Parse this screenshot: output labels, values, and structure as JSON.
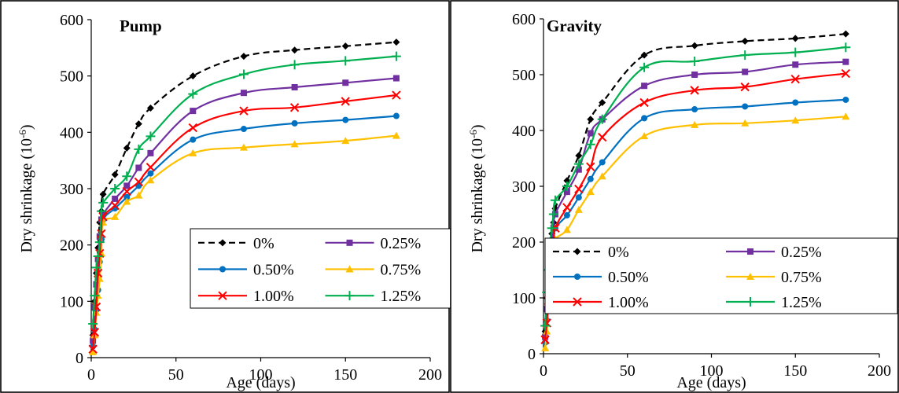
{
  "chart_data": [
    {
      "type": "line",
      "title": "Pump",
      "xlabel": "Age (days)",
      "ylabel": "Dry shrinkage (10",
      "ylabel_sup": "-6",
      "ylabel_close": ")",
      "xlim": [
        0,
        200
      ],
      "ylim": [
        0,
        600
      ],
      "xticks": [
        0,
        50,
        100,
        150,
        200
      ],
      "yticks": [
        0,
        100,
        200,
        300,
        400,
        500,
        600
      ],
      "grid": false,
      "legend_position": "bottom-right",
      "x": [
        1,
        2,
        3,
        4,
        5,
        6,
        7,
        14,
        21,
        28,
        35,
        60,
        90,
        120,
        150,
        180
      ],
      "series": [
        {
          "name": "0%",
          "color": "#000000",
          "dash": "8,5",
          "marker": "diamond",
          "values": [
            40,
            100,
            150,
            195,
            240,
            260,
            290,
            325,
            372,
            415,
            443,
            500,
            535,
            546,
            553,
            560
          ]
        },
        {
          "name": "0.25%",
          "color": "#7030A0",
          "dash": "",
          "marker": "square",
          "values": [
            30,
            90,
            130,
            175,
            215,
            245,
            255,
            282,
            305,
            337,
            363,
            438,
            470,
            480,
            488,
            496
          ]
        },
        {
          "name": "0.50%",
          "color": "#0070C0",
          "dash": "",
          "marker": "circle",
          "values": [
            20,
            50,
            85,
            120,
            170,
            210,
            245,
            265,
            285,
            305,
            327,
            387,
            406,
            416,
            422,
            429
          ]
        },
        {
          "name": "0.75%",
          "color": "#FFC000",
          "dash": "",
          "marker": "triangle",
          "values": [
            10,
            40,
            80,
            110,
            140,
            185,
            240,
            250,
            277,
            288,
            315,
            363,
            373,
            379,
            385,
            394
          ]
        },
        {
          "name": "1.00%",
          "color": "#FF0000",
          "dash": "",
          "marker": "x",
          "values": [
            15,
            45,
            90,
            150,
            185,
            220,
            250,
            270,
            295,
            312,
            338,
            408,
            438,
            444,
            455,
            466
          ]
        },
        {
          "name": "1.25%",
          "color": "#00B050",
          "dash": "",
          "marker": "plus",
          "values": [
            60,
            110,
            160,
            180,
            205,
            260,
            275,
            300,
            322,
            370,
            393,
            468,
            503,
            520,
            527,
            535
          ]
        }
      ]
    },
    {
      "type": "line",
      "title": "Gravity",
      "xlabel": "Age (days)",
      "ylabel": "Dry shrinkage (10",
      "ylabel_sup": "-6",
      "ylabel_close": ")",
      "xlim": [
        0,
        200
      ],
      "ylim": [
        0,
        600
      ],
      "xticks": [
        0,
        50,
        100,
        150,
        200
      ],
      "yticks": [
        0,
        100,
        200,
        300,
        400,
        500,
        600
      ],
      "grid": false,
      "legend_position": "bottom-right",
      "x": [
        1,
        2,
        3,
        4,
        5,
        6,
        7,
        14,
        21,
        28,
        35,
        60,
        90,
        120,
        150,
        180
      ],
      "series": [
        {
          "name": "0%",
          "color": "#000000",
          "dash": "8,5",
          "marker": "diamond",
          "values": [
            40,
            100,
            150,
            190,
            215,
            235,
            260,
            310,
            355,
            420,
            450,
            535,
            552,
            560,
            565,
            573
          ]
        },
        {
          "name": "0.25%",
          "color": "#7030A0",
          "dash": "",
          "marker": "square",
          "values": [
            30,
            80,
            120,
            160,
            200,
            225,
            250,
            290,
            330,
            395,
            420,
            480,
            500,
            505,
            518,
            523
          ]
        },
        {
          "name": "0.50%",
          "color": "#0070C0",
          "dash": "",
          "marker": "circle",
          "values": [
            20,
            60,
            100,
            140,
            180,
            200,
            225,
            248,
            280,
            313,
            343,
            422,
            438,
            443,
            450,
            455
          ]
        },
        {
          "name": "0.75%",
          "color": "#FFC000",
          "dash": "",
          "marker": "triangle",
          "values": [
            10,
            40,
            90,
            130,
            165,
            185,
            205,
            222,
            258,
            290,
            318,
            390,
            410,
            413,
            418,
            425
          ]
        },
        {
          "name": "1.00%",
          "color": "#FF0000",
          "dash": "",
          "marker": "x",
          "values": [
            25,
            55,
            95,
            135,
            160,
            190,
            225,
            262,
            295,
            335,
            388,
            450,
            472,
            478,
            492,
            502
          ]
        },
        {
          "name": "1.25%",
          "color": "#00B050",
          "dash": "",
          "marker": "plus",
          "values": [
            50,
            110,
            150,
            200,
            225,
            250,
            275,
            300,
            340,
            375,
            420,
            513,
            524,
            535,
            540,
            549
          ]
        }
      ]
    }
  ]
}
